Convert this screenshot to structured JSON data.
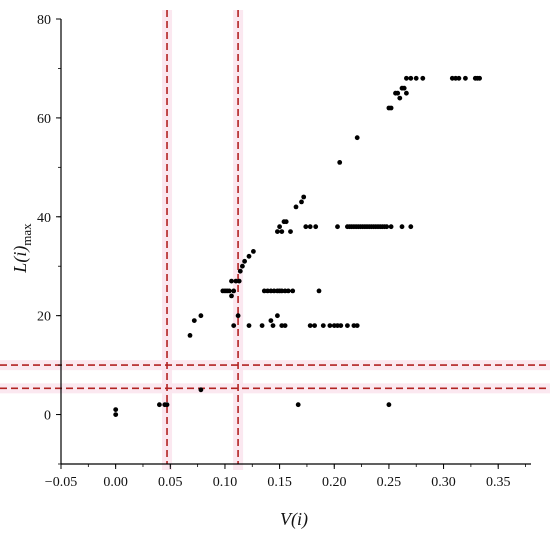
{
  "chart_data": {
    "type": "scatter",
    "xlabel": "V(i)",
    "ylabel": "L(i)max",
    "xlim": [
      -0.05,
      0.38
    ],
    "ylim": [
      -10,
      80
    ],
    "xticks": [
      "−0.05",
      "0.00",
      "0.05",
      "0.10",
      "0.15",
      "0.20",
      "0.25",
      "0.30",
      "0.35"
    ],
    "yticks": [
      "0",
      "20",
      "40",
      "60",
      "80"
    ],
    "grid": false,
    "point_color": "#000000",
    "reference_lines": [
      {
        "orientation": "vertical",
        "value": 0.047,
        "color": "#b22222",
        "style": "dashed"
      },
      {
        "orientation": "vertical",
        "value": 0.112,
        "color": "#b22222",
        "style": "dashed"
      },
      {
        "orientation": "horizontal",
        "value": 10,
        "color": "#b22222",
        "style": "dashed"
      },
      {
        "orientation": "horizontal",
        "value": 5.3,
        "color": "#b22222",
        "style": "dashed"
      }
    ],
    "points": [
      [
        0.0,
        1
      ],
      [
        0.0,
        0
      ],
      [
        0.04,
        2
      ],
      [
        0.045,
        2
      ],
      [
        0.047,
        2
      ],
      [
        0.078,
        5
      ],
      [
        0.068,
        16
      ],
      [
        0.072,
        19
      ],
      [
        0.078,
        20
      ],
      [
        0.098,
        25
      ],
      [
        0.1,
        25
      ],
      [
        0.102,
        25
      ],
      [
        0.104,
        25
      ],
      [
        0.106,
        24
      ],
      [
        0.108,
        25
      ],
      [
        0.106,
        27
      ],
      [
        0.11,
        27
      ],
      [
        0.113,
        27
      ],
      [
        0.108,
        18
      ],
      [
        0.112,
        20
      ],
      [
        0.114,
        29
      ],
      [
        0.116,
        30
      ],
      [
        0.118,
        31
      ],
      [
        0.122,
        32
      ],
      [
        0.126,
        33
      ],
      [
        0.122,
        18
      ],
      [
        0.134,
        18
      ],
      [
        0.136,
        25
      ],
      [
        0.139,
        25
      ],
      [
        0.142,
        25
      ],
      [
        0.145,
        25
      ],
      [
        0.148,
        25
      ],
      [
        0.15,
        25
      ],
      [
        0.152,
        25
      ],
      [
        0.155,
        25
      ],
      [
        0.158,
        25
      ],
      [
        0.162,
        25
      ],
      [
        0.186,
        25
      ],
      [
        0.142,
        19
      ],
      [
        0.144,
        18
      ],
      [
        0.148,
        20
      ],
      [
        0.152,
        18
      ],
      [
        0.155,
        18
      ],
      [
        0.148,
        37
      ],
      [
        0.15,
        38
      ],
      [
        0.152,
        37
      ],
      [
        0.154,
        39
      ],
      [
        0.156,
        39
      ],
      [
        0.16,
        37
      ],
      [
        0.165,
        42
      ],
      [
        0.17,
        43
      ],
      [
        0.172,
        44
      ],
      [
        0.174,
        38
      ],
      [
        0.178,
        38
      ],
      [
        0.183,
        38
      ],
      [
        0.203,
        38
      ],
      [
        0.212,
        38
      ],
      [
        0.214,
        38
      ],
      [
        0.216,
        38
      ],
      [
        0.218,
        38
      ],
      [
        0.22,
        38
      ],
      [
        0.222,
        38
      ],
      [
        0.224,
        38
      ],
      [
        0.226,
        38
      ],
      [
        0.228,
        38
      ],
      [
        0.23,
        38
      ],
      [
        0.232,
        38
      ],
      [
        0.234,
        38
      ],
      [
        0.236,
        38
      ],
      [
        0.238,
        38
      ],
      [
        0.24,
        38
      ],
      [
        0.242,
        38
      ],
      [
        0.244,
        38
      ],
      [
        0.246,
        38
      ],
      [
        0.248,
        38
      ],
      [
        0.252,
        38
      ],
      [
        0.262,
        38
      ],
      [
        0.27,
        38
      ],
      [
        0.178,
        18
      ],
      [
        0.182,
        18
      ],
      [
        0.19,
        18
      ],
      [
        0.196,
        18
      ],
      [
        0.2,
        18
      ],
      [
        0.203,
        18
      ],
      [
        0.206,
        18
      ],
      [
        0.212,
        18
      ],
      [
        0.218,
        18
      ],
      [
        0.221,
        18
      ],
      [
        0.167,
        2
      ],
      [
        0.25,
        2
      ],
      [
        0.205,
        51
      ],
      [
        0.221,
        56
      ],
      [
        0.25,
        62
      ],
      [
        0.252,
        62
      ],
      [
        0.256,
        65
      ],
      [
        0.258,
        65
      ],
      [
        0.26,
        64
      ],
      [
        0.262,
        66
      ],
      [
        0.264,
        66
      ],
      [
        0.266,
        65
      ],
      [
        0.266,
        68
      ],
      [
        0.27,
        68
      ],
      [
        0.275,
        68
      ],
      [
        0.281,
        68
      ],
      [
        0.308,
        68
      ],
      [
        0.311,
        68
      ],
      [
        0.314,
        68
      ],
      [
        0.32,
        68
      ],
      [
        0.329,
        68
      ],
      [
        0.331,
        68
      ],
      [
        0.333,
        68
      ]
    ]
  }
}
